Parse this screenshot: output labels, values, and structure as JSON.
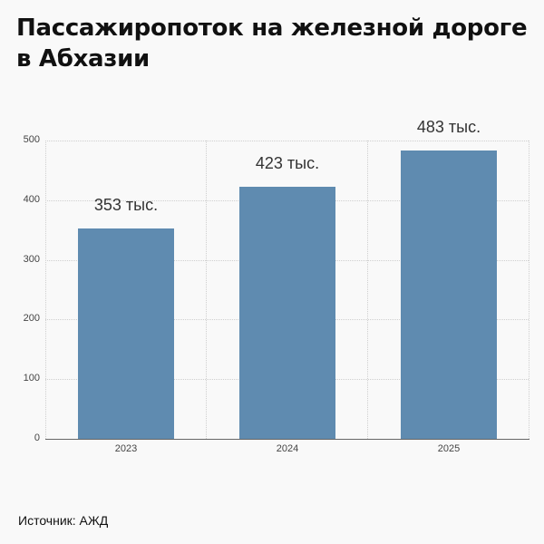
{
  "title": "Пассажиропоток на железной дороге в Абхазии",
  "source": "Источник: АЖД",
  "colors": {
    "bar": "#5f8bb0",
    "background": "#f9f9f9"
  },
  "chart_data": {
    "type": "bar",
    "title": "Пассажиропоток на железной дороге в Абхазии",
    "categories": [
      "2023",
      "2024",
      "2025"
    ],
    "values": [
      353,
      423,
      483
    ],
    "data_labels": [
      "353 тыс.",
      "423 тыс.",
      "483 тыс."
    ],
    "xlabel": "",
    "ylabel": "",
    "unit": "тыс. пассажиров",
    "ylim": [
      0,
      500
    ],
    "yticks": [
      "0",
      "100",
      "200",
      "300",
      "400",
      "500"
    ],
    "grid": true,
    "legend": null
  }
}
